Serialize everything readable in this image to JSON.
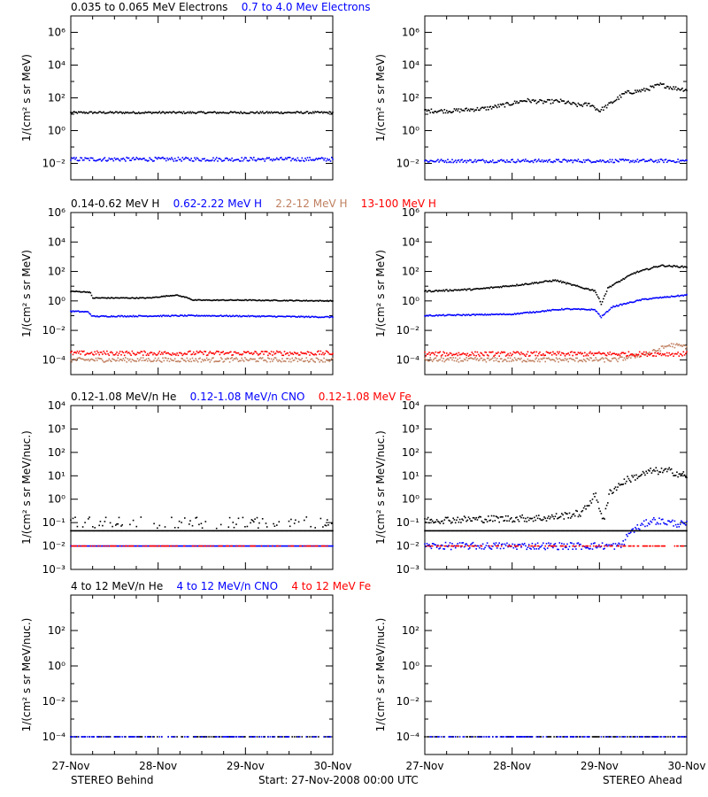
{
  "footer": {
    "left": "STEREO Behind",
    "center": "Start: 27-Nov-2008 00:00 UTC",
    "right": "STEREO Ahead"
  },
  "chart_data": [
    {
      "type": "scatter",
      "ylabel": "1/(cm² s sr MeV)",
      "yscale": "log",
      "ylim_exp": [
        -3,
        7
      ],
      "yticks_exp": [
        -2,
        0,
        2,
        4,
        6
      ],
      "titles": [
        {
          "text": "0.035 to 0.065 MeV Electrons",
          "color": "#000000"
        },
        {
          "text": "0.7 to 4.0 Mev Electrons",
          "color": "#0000ff"
        }
      ],
      "x_days": [
        0,
        3
      ],
      "panels": [
        {
          "name": "STEREO Behind",
          "series": [
            {
              "name": "0.035 to 0.065 MeV Electrons",
              "color": "#000000",
              "model": "flat",
              "level_exp": 1.1,
              "noise": 0.06
            },
            {
              "name": "0.7 to 4.0 Mev Electrons",
              "color": "#0000ff",
              "model": "flat",
              "level_exp": -1.75,
              "noise": 0.12
            }
          ]
        },
        {
          "name": "STEREO Ahead",
          "series": [
            {
              "name": "0.035 to 0.065 MeV Electrons",
              "color": "#000000",
              "model": "points",
              "points": [
                [
                  0,
                  1.2
                ],
                [
                  0.3,
                  1.2
                ],
                [
                  0.7,
                  1.35
                ],
                [
                  0.95,
                  1.6
                ],
                [
                  1.15,
                  1.85
                ],
                [
                  1.35,
                  1.75
                ],
                [
                  1.55,
                  1.8
                ],
                [
                  1.75,
                  1.55
                ],
                [
                  1.9,
                  1.6
                ],
                [
                  2.0,
                  1.2
                ],
                [
                  2.1,
                  1.55
                ],
                [
                  2.3,
                  2.3
                ],
                [
                  2.5,
                  2.45
                ],
                [
                  2.7,
                  2.8
                ],
                [
                  2.85,
                  2.6
                ],
                [
                  3.0,
                  2.5
                ]
              ],
              "noise": 0.12
            },
            {
              "name": "0.7 to 4.0 Mev Electrons",
              "color": "#0000ff",
              "model": "flat",
              "level_exp": -1.85,
              "noise": 0.1
            }
          ]
        }
      ]
    },
    {
      "type": "scatter",
      "ylabel": "1/(cm² s sr MeV)",
      "yscale": "log",
      "ylim_exp": [
        -5,
        6
      ],
      "yticks_exp": [
        -4,
        -2,
        0,
        2,
        4,
        6
      ],
      "titles": [
        {
          "text": "0.14-0.62 MeV H",
          "color": "#000000"
        },
        {
          "text": "0.62-2.22 MeV H",
          "color": "#0000ff"
        },
        {
          "text": "2.2-12 MeV H",
          "color": "#c08060"
        },
        {
          "text": "13-100 MeV H",
          "color": "#ff0000"
        }
      ],
      "x_days": [
        0,
        3
      ],
      "panels": [
        {
          "name": "STEREO Behind",
          "series": [
            {
              "name": "0.14-0.62 MeV H",
              "color": "#000000",
              "model": "points",
              "points": [
                [
                  0,
                  0.65
                ],
                [
                  0.22,
                  0.6
                ],
                [
                  0.25,
                  0.2
                ],
                [
                  0.9,
                  0.2
                ],
                [
                  1.2,
                  0.4
                ],
                [
                  1.35,
                  0.2
                ],
                [
                  1.4,
                  0.05
                ],
                [
                  2.0,
                  0.05
                ],
                [
                  3.0,
                  0.0
                ]
              ],
              "noise": 0.03
            },
            {
              "name": "0.62-2.22 MeV H",
              "color": "#0000ff",
              "model": "points",
              "points": [
                [
                  0,
                  -0.7
                ],
                [
                  0.2,
                  -0.75
                ],
                [
                  0.25,
                  -1.05
                ],
                [
                  1.5,
                  -1.0
                ],
                [
                  3.0,
                  -1.1
                ]
              ],
              "noise": 0.04
            },
            {
              "name": "2.2-12 MeV H",
              "color": "#c08060",
              "model": "flat",
              "level_exp": -4.0,
              "noise": 0.15
            },
            {
              "name": "13-100 MeV H",
              "color": "#ff0000",
              "model": "flat",
              "level_exp": -3.55,
              "noise": 0.15
            }
          ]
        },
        {
          "name": "STEREO Ahead",
          "series": [
            {
              "name": "0.14-0.62 MeV H",
              "color": "#000000",
              "model": "points",
              "points": [
                [
                  0,
                  0.65
                ],
                [
                  0.6,
                  0.8
                ],
                [
                  1.1,
                  1.1
                ],
                [
                  1.5,
                  1.4
                ],
                [
                  1.8,
                  0.9
                ],
                [
                  1.95,
                  0.7
                ],
                [
                  2.02,
                  -0.2
                ],
                [
                  2.1,
                  0.9
                ],
                [
                  2.4,
                  1.9
                ],
                [
                  2.7,
                  2.4
                ],
                [
                  3.0,
                  2.3
                ]
              ],
              "noise": 0.05
            },
            {
              "name": "0.62-2.22 MeV H",
              "color": "#0000ff",
              "model": "points",
              "points": [
                [
                  0,
                  -1.0
                ],
                [
                  1.0,
                  -0.9
                ],
                [
                  1.6,
                  -0.55
                ],
                [
                  1.95,
                  -0.6
                ],
                [
                  2.02,
                  -1.1
                ],
                [
                  2.15,
                  -0.4
                ],
                [
                  2.5,
                  0.1
                ],
                [
                  3.0,
                  0.4
                ]
              ],
              "noise": 0.04
            },
            {
              "name": "2.2-12 MeV H",
              "color": "#c08060",
              "model": "points",
              "points": [
                [
                  0,
                  -4.0
                ],
                [
                  2.2,
                  -4.0
                ],
                [
                  2.6,
                  -3.5
                ],
                [
                  2.8,
                  -3.0
                ],
                [
                  3.0,
                  -3.1
                ]
              ],
              "noise": 0.15
            },
            {
              "name": "13-100 MeV H",
              "color": "#ff0000",
              "model": "flat",
              "level_exp": -3.6,
              "noise": 0.15
            }
          ]
        }
      ]
    },
    {
      "type": "scatter",
      "ylabel": "1/(cm² s sr MeV/nuc.)",
      "yscale": "log",
      "ylim_exp": [
        -3,
        4
      ],
      "yticks_exp": [
        -3,
        -2,
        -1,
        0,
        1,
        2,
        3,
        4
      ],
      "titles": [
        {
          "text": "0.12-1.08 MeV/n He",
          "color": "#000000"
        },
        {
          "text": "0.12-1.08 MeV/n CNO",
          "color": "#0000ff"
        },
        {
          "text": "0.12-1.08 MeV Fe",
          "color": "#ff0000"
        }
      ],
      "x_days": [
        0,
        3
      ],
      "panels": [
        {
          "name": "STEREO Behind",
          "series": [
            {
              "name": "0.12-1.08 MeV/n He",
              "color": "#000000",
              "model": "flat",
              "level_exp": -1.35,
              "noise": 0.0
            },
            {
              "name": "0.12-1.08 MeV/n He",
              "color": "#000000",
              "model": "flat",
              "level_exp": -1.0,
              "noise": 0.25,
              "sparse": 0.35
            },
            {
              "name": "0.12-1.08 MeV/n CNO",
              "color": "#0000ff",
              "model": "flat",
              "level_exp": -2.0,
              "noise": 0.0
            },
            {
              "name": "0.12-1.08 MeV Fe",
              "color": "#ff0000",
              "model": "flat",
              "level_exp": -2.0,
              "noise": 0.0,
              "sparse": 0.5
            }
          ]
        },
        {
          "name": "STEREO Ahead",
          "series": [
            {
              "name": "0.12-1.08 MeV/n He",
              "color": "#000000",
              "model": "flat",
              "level_exp": -1.35,
              "noise": 0.0
            },
            {
              "name": "0.12-1.08 MeV/n He",
              "color": "#000000",
              "model": "points",
              "points": [
                [
                  0,
                  -0.9
                ],
                [
                  1.4,
                  -0.8
                ],
                [
                  1.8,
                  -0.6
                ],
                [
                  1.95,
                  0.2
                ],
                [
                  2.05,
                  -0.9
                ],
                [
                  2.12,
                  0.3
                ],
                [
                  2.3,
                  0.8
                ],
                [
                  2.6,
                  1.2
                ],
                [
                  2.8,
                  1.2
                ],
                [
                  3.0,
                  1.0
                ]
              ],
              "noise": 0.15
            },
            {
              "name": "0.12-1.08 MeV/n CNO",
              "color": "#0000ff",
              "model": "points",
              "points": [
                [
                  0,
                  -2.0
                ],
                [
                  2.25,
                  -2.0
                ],
                [
                  2.35,
                  -1.4
                ],
                [
                  2.6,
                  -0.9
                ],
                [
                  3.0,
                  -1.1
                ]
              ],
              "noise": 0.15
            },
            {
              "name": "0.12-1.08 MeV Fe",
              "color": "#ff0000",
              "model": "flat",
              "level_exp": -2.0,
              "noise": 0.0,
              "sparse": 0.5
            }
          ]
        }
      ]
    },
    {
      "type": "scatter",
      "ylabel": "1/(cm² s sr MeV/nuc.)",
      "yscale": "log",
      "ylim_exp": [
        -5,
        4
      ],
      "yticks_exp": [
        -4,
        -2,
        0,
        2
      ],
      "titles": [
        {
          "text": "4 to 12 MeV/n He",
          "color": "#000000"
        },
        {
          "text": "4 to 12 MeV/n CNO",
          "color": "#0000ff"
        },
        {
          "text": "4 to 12 MeV Fe",
          "color": "#ff0000"
        }
      ],
      "x_days": [
        0,
        3
      ],
      "xticks": [
        "27-Nov",
        "28-Nov",
        "29-Nov",
        "30-Nov"
      ],
      "panels": [
        {
          "name": "STEREO Behind",
          "series": [
            {
              "name": "4 to 12 MeV/n He",
              "color": "#000000",
              "model": "flat",
              "level_exp": -4.0,
              "noise": 0.0,
              "sparse": 0.4
            },
            {
              "name": "4 to 12 MeV/n CNO",
              "color": "#0000ff",
              "model": "flat",
              "level_exp": -4.0,
              "noise": 0.0,
              "sparse": 0.4
            }
          ]
        },
        {
          "name": "STEREO Ahead",
          "series": [
            {
              "name": "4 to 12 MeV/n He",
              "color": "#000000",
              "model": "flat",
              "level_exp": -4.0,
              "noise": 0.0,
              "sparse": 0.4
            },
            {
              "name": "4 to 12 MeV/n CNO",
              "color": "#0000ff",
              "model": "flat",
              "level_exp": -4.0,
              "noise": 0.0,
              "sparse": 0.4
            }
          ]
        }
      ]
    }
  ]
}
